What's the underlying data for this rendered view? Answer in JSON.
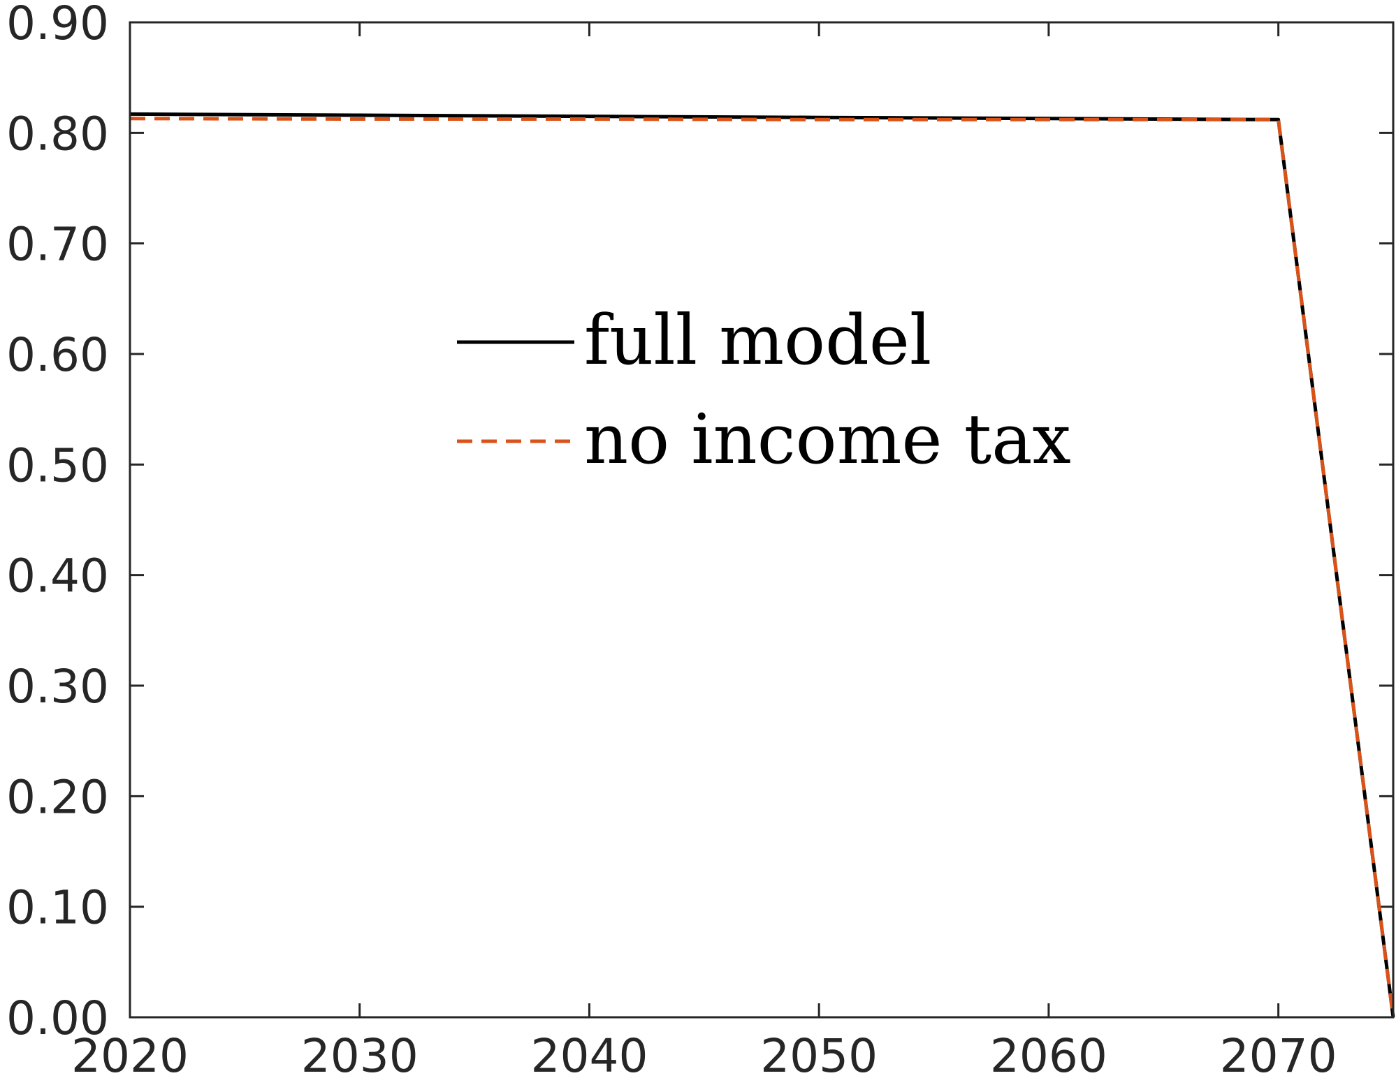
{
  "chart_data": {
    "type": "line",
    "title": "",
    "xlabel": "",
    "ylabel": "",
    "xlim": [
      2020,
      2075
    ],
    "ylim": [
      0,
      0.9
    ],
    "xticks": [
      2020,
      2030,
      2040,
      2050,
      2060,
      2070
    ],
    "xtick_labels": [
      "2020",
      "2030",
      "2040",
      "2050",
      "2060",
      "2070"
    ],
    "yticks": [
      0,
      0.1,
      0.2,
      0.3,
      0.4,
      0.5,
      0.6,
      0.7,
      0.8,
      0.9
    ],
    "ytick_labels": [
      "0.00",
      "0.10",
      "0.20",
      "0.30",
      "0.40",
      "0.50",
      "0.60",
      "0.70",
      "0.80",
      "0.90"
    ],
    "grid": false,
    "legend_placement": "center",
    "series": [
      {
        "name": "full model",
        "color": "#000000",
        "style": "solid",
        "x": [
          2020,
          2030,
          2040,
          2050,
          2060,
          2070,
          2075
        ],
        "y": [
          0.817,
          0.816,
          0.815,
          0.814,
          0.813,
          0.812,
          0.0
        ]
      },
      {
        "name": "no income tax",
        "color": "#D95319",
        "style": "dashed",
        "x": [
          2020,
          2030,
          2040,
          2050,
          2060,
          2070,
          2075
        ],
        "y": [
          0.813,
          0.8125,
          0.8125,
          0.812,
          0.812,
          0.812,
          0.0
        ]
      }
    ]
  }
}
